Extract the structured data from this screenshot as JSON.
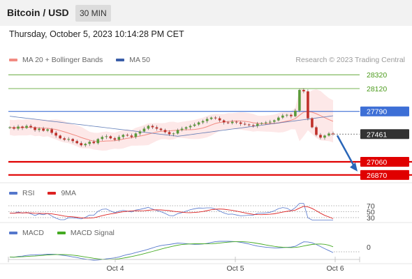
{
  "header": {
    "title": "Bitcoin / USD",
    "timeframe": "30 MIN"
  },
  "datetime": "Thursday, October 5, 2023 10:14:28 PM CET",
  "credit": "Research © 2023 Trading Central",
  "legend_main": [
    {
      "label": "MA 20 + Bollinger Bands",
      "color": "#f28b82"
    },
    {
      "label": "MA 50",
      "color": "#3a5ea8"
    }
  ],
  "legend_rsi": [
    {
      "label": "RSI",
      "color": "#5577cc"
    },
    {
      "label": "9MA",
      "color": "#dd2222"
    }
  ],
  "legend_macd": [
    {
      "label": "MACD",
      "color": "#5577cc"
    },
    {
      "label": "MACD Signal",
      "color": "#44aa22"
    }
  ],
  "colors": {
    "resistance": "#4a9a1a",
    "support": "#e00000",
    "pivot": "#3d6fd6",
    "last": "#333333",
    "bullish_candle": "#5a9a3a",
    "bearish_candle": "#c0302a",
    "band_fill": "#fde4e4",
    "arrow": "#2a66b8"
  },
  "chart_data": [
    {
      "type": "candlestick",
      "title": "Bitcoin / USD",
      "interval": "30 MIN",
      "x_ticks": [
        "Oct 4",
        "Oct 5",
        "Oct 6"
      ],
      "ylim": [
        26800,
        28400
      ],
      "levels": [
        {
          "name": "resistance-2",
          "value": 28320,
          "label": "28320",
          "kind": "resistance"
        },
        {
          "name": "resistance-1",
          "value": 28120,
          "label": "28120",
          "kind": "resistance"
        },
        {
          "name": "pivot",
          "value": 27790,
          "label": "27790",
          "kind": "pivot"
        },
        {
          "name": "last",
          "value": 27461,
          "label": "27461",
          "kind": "last"
        },
        {
          "name": "support-1",
          "value": 27060,
          "label": "27060",
          "kind": "support"
        },
        {
          "name": "support-2",
          "value": 26870,
          "label": "26870",
          "kind": "support"
        }
      ],
      "forecast": {
        "from": 27461,
        "to": 27060,
        "direction": "down"
      },
      "close_series": [
        27560,
        27540,
        27570,
        27550,
        27580,
        27560,
        27520,
        27540,
        27510,
        27530,
        27480,
        27440,
        27400,
        27380,
        27390,
        27360,
        27330,
        27300,
        27320,
        27350,
        27330,
        27390,
        27420,
        27430,
        27400,
        27380,
        27420,
        27450,
        27440,
        27420,
        27470,
        27500,
        27540,
        27580,
        27560,
        27540,
        27520,
        27490,
        27460,
        27470,
        27520,
        27540,
        27560,
        27580,
        27600,
        27630,
        27650,
        27680,
        27700,
        27690,
        27660,
        27630,
        27620,
        27640,
        27630,
        27610,
        27600,
        27590,
        27580,
        27610,
        27620,
        27630,
        27640,
        27660,
        27700,
        27730,
        27740,
        27720,
        27800,
        28100,
        28080,
        27690,
        27560,
        27450,
        27410,
        27440,
        27470,
        27461
      ]
    },
    {
      "type": "line",
      "title": "RSI",
      "series": [
        {
          "name": "RSI"
        },
        {
          "name": "9MA"
        }
      ],
      "y_ticks": [
        70,
        50,
        30
      ],
      "ylim": [
        20,
        80
      ]
    },
    {
      "type": "line",
      "title": "MACD",
      "series": [
        {
          "name": "MACD"
        },
        {
          "name": "MACD Signal"
        }
      ],
      "y_ticks": [
        0
      ]
    }
  ]
}
